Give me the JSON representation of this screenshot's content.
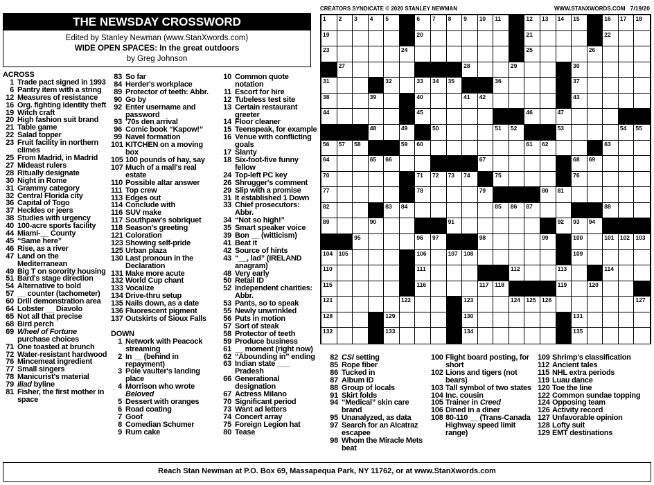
{
  "header": {
    "title": "THE NEWSDAY CROSSWORD",
    "editor": "Edited by Stanley Newman (www.StanXwords.com)",
    "theme": "WIDE OPEN SPACES: In the great outdoors",
    "author": "by Greg Johnson"
  },
  "grid_header": {
    "credit": "CREATORS SYNDICATE © 2020 STANLEY NEWMAN",
    "site": "WWW.STANXWORDS.COM",
    "date": "7/19/20"
  },
  "labels": {
    "across": "ACROSS",
    "down": "DOWN"
  },
  "grid": [
    ".....#......#....#...",
    ".....#......#....#...",
    "............#........",
    "#.....###......#.....",
    "...#.....##....#.....",
    ".....#.........#.....",
    ".....#.....##......##",
    "###...#......##......",
    "...##............#...",
    ".......###.....#.....",
    ".....#....#....#.....",
    ".....#.....###.......",
    "...#............##...",
    "......##......#...###",
    "##......##.....#.....",
    ".....#.........#.....",
    ".....#....##.....#...",
    ".....#......###.....#",
    "........#............",
    "...#....#......#.....",
    "...#....#......#....."
  ],
  "across": [
    {
      "n": "1",
      "t": "Trade pact signed in 1993"
    },
    {
      "n": "6",
      "t": "Pantry item with a string"
    },
    {
      "n": "12",
      "t": "Measures of resistance"
    },
    {
      "n": "16",
      "t": "Org. fighting identity theft"
    },
    {
      "n": "19",
      "t": "Witch craft"
    },
    {
      "n": "20",
      "t": "High fashion suit brand"
    },
    {
      "n": "21",
      "t": "Table game"
    },
    {
      "n": "22",
      "t": "Salad topper"
    },
    {
      "n": "23",
      "t": "Fruit facility in northern climes"
    },
    {
      "n": "25",
      "t": "From Madrid, in Madrid"
    },
    {
      "n": "27",
      "t": "Mideast rulers"
    },
    {
      "n": "28",
      "t": "Ritually designate"
    },
    {
      "n": "30",
      "t": "Night in Rome"
    },
    {
      "n": "31",
      "t": "Grammy category"
    },
    {
      "n": "32",
      "t": "Central Florida city"
    },
    {
      "n": "36",
      "t": "Capital of Togo"
    },
    {
      "n": "37",
      "t": "Heckles or jeers"
    },
    {
      "n": "38",
      "t": "Studies with urgency"
    },
    {
      "n": "40",
      "t": "100-acre sports facility"
    },
    {
      "n": "44",
      "t": "Miami-__ County"
    },
    {
      "n": "45",
      "t": "“Same here”"
    },
    {
      "n": "46",
      "t": "Rise, as a river"
    },
    {
      "n": "47",
      "t": "Land on the Mediterranean"
    },
    {
      "n": "49",
      "t": "Big T on sorority housing"
    },
    {
      "n": "51",
      "t": "Bard's stage direction"
    },
    {
      "n": "54",
      "t": "Alternative to bold"
    },
    {
      "n": "57",
      "t": "__ counter (tachometer)"
    },
    {
      "n": "60",
      "t": "Drill demonstration area"
    },
    {
      "n": "64",
      "t": "Lobster __ Diavolo"
    },
    {
      "n": "65",
      "t": "Not all that precise"
    },
    {
      "n": "68",
      "t": "Bird perch"
    },
    {
      "n": "69",
      "t": "Wheel of Fortune purchase choices",
      "i": "Wheel of Fortune"
    },
    {
      "n": "71",
      "t": "One toasted at brunch"
    },
    {
      "n": "72",
      "t": "Water-resistant hardwood"
    },
    {
      "n": "76",
      "t": "Mincemeat ingredient"
    },
    {
      "n": "77",
      "t": "Small singers"
    },
    {
      "n": "78",
      "t": "Manicurist's material"
    },
    {
      "n": "79",
      "t": "Iliad byline",
      "i": "Iliad"
    },
    {
      "n": "81",
      "t": "Fisher, the first mother in space"
    },
    {
      "n": "83",
      "t": "So far"
    },
    {
      "n": "84",
      "t": "Herder's workplace"
    },
    {
      "n": "89",
      "t": "Protector of teeth: Abbr."
    },
    {
      "n": "90",
      "t": "Go by"
    },
    {
      "n": "92",
      "t": "Enter username and password"
    },
    {
      "n": "93",
      "t": "'70s den arrival"
    },
    {
      "n": "96",
      "t": "Comic book “Kapow!”"
    },
    {
      "n": "99",
      "t": "Navel formation"
    },
    {
      "n": "101",
      "t": "KITCHEN on a moving box"
    },
    {
      "n": "105",
      "t": "100 pounds of hay, say"
    },
    {
      "n": "107",
      "t": "Much of a mall's real estate"
    },
    {
      "n": "110",
      "t": "Possible altar answer"
    },
    {
      "n": "111",
      "t": "Top crew"
    },
    {
      "n": "113",
      "t": "Edges out"
    },
    {
      "n": "114",
      "t": "Conclude with"
    },
    {
      "n": "116",
      "t": "SUV make"
    },
    {
      "n": "117",
      "t": "Southpaw's sobriquet"
    },
    {
      "n": "118",
      "t": "Season's greeting"
    },
    {
      "n": "121",
      "t": "Coloration"
    },
    {
      "n": "123",
      "t": "Showing self-pride"
    },
    {
      "n": "125",
      "t": "Urban plaza"
    },
    {
      "n": "130",
      "t": "Last pronoun in the Declaration"
    },
    {
      "n": "131",
      "t": "Make more acute"
    },
    {
      "n": "132",
      "t": "World Cup chant"
    },
    {
      "n": "133",
      "t": "Vocalize"
    },
    {
      "n": "134",
      "t": "Drive-thru setup"
    },
    {
      "n": "135",
      "t": "Nails down, as a date"
    },
    {
      "n": "136",
      "t": "Fluorescent pigment"
    },
    {
      "n": "137",
      "t": "Outskirts of Sioux Falls"
    }
  ],
  "down": [
    {
      "n": "1",
      "t": "Network with Peacock streaming"
    },
    {
      "n": "2",
      "t": "In __ (behind in repayment)"
    },
    {
      "n": "3",
      "t": "Pole vaulter's landing place"
    },
    {
      "n": "4",
      "t": "Morrison who wrote Beloved",
      "i": "Beloved"
    },
    {
      "n": "5",
      "t": "Dessert with oranges"
    },
    {
      "n": "6",
      "t": "Road coating"
    },
    {
      "n": "7",
      "t": "Goof"
    },
    {
      "n": "8",
      "t": "Comedian Schumer"
    },
    {
      "n": "9",
      "t": "Rum cake"
    },
    {
      "n": "10",
      "t": "Common quote notation"
    },
    {
      "n": "11",
      "t": "Escort for hire"
    },
    {
      "n": "12",
      "t": "Tubeless test site"
    },
    {
      "n": "13",
      "t": "Certain restaurant greeter"
    },
    {
      "n": "14",
      "t": "Floor cleaner"
    },
    {
      "n": "15",
      "t": "Teenspeak, for example"
    },
    {
      "n": "16",
      "t": "Venue with conflicting goals"
    },
    {
      "n": "17",
      "t": "Slanty"
    },
    {
      "n": "18",
      "t": "Six-foot-five funny fellow"
    },
    {
      "n": "24",
      "t": "Top-left PC key"
    },
    {
      "n": "26",
      "t": "Shrugger's comment"
    },
    {
      "n": "29",
      "t": "Slip with a promise"
    },
    {
      "n": "31",
      "t": "It established 1 Down"
    },
    {
      "n": "33",
      "t": "Chief prosecutors: Abbr."
    },
    {
      "n": "34",
      "t": "“Not so high!”"
    },
    {
      "n": "35",
      "t": "Smart speaker voice"
    },
    {
      "n": "39",
      "t": "Bon __ (witticism)"
    },
    {
      "n": "41",
      "t": "Beat it"
    },
    {
      "n": "42",
      "t": "Source of hints"
    },
    {
      "n": "43",
      "t": "“__, lad” (IRELAND anagram)"
    },
    {
      "n": "48",
      "t": "Very early"
    },
    {
      "n": "50",
      "t": "Retail ID"
    },
    {
      "n": "52",
      "t": "Independent charities: Abbr."
    },
    {
      "n": "53",
      "t": "Pants, so to speak"
    },
    {
      "n": "55",
      "t": "Newly unwrinkled"
    },
    {
      "n": "56",
      "t": "Puts in motion"
    },
    {
      "n": "57",
      "t": "Sort of steak"
    },
    {
      "n": "58",
      "t": "Protector of teeth"
    },
    {
      "n": "59",
      "t": "Produce business"
    },
    {
      "n": "61",
      "t": "__ moment (right now)"
    },
    {
      "n": "62",
      "t": "“Abounding in” ending"
    },
    {
      "n": "63",
      "t": "Indian state ___ Pradesh"
    },
    {
      "n": "66",
      "t": "Generational designation"
    },
    {
      "n": "67",
      "t": "Actress Milano"
    },
    {
      "n": "70",
      "t": "Significant period"
    },
    {
      "n": "73",
      "t": "Want ad letters"
    },
    {
      "n": "74",
      "t": "Concert array"
    },
    {
      "n": "75",
      "t": "Foreign Legion hat"
    },
    {
      "n": "80",
      "t": "Tease"
    },
    {
      "n": "82",
      "t": "CSI setting",
      "i": "CSI"
    },
    {
      "n": "85",
      "t": "Rope fiber"
    },
    {
      "n": "86",
      "t": "Tucked in"
    },
    {
      "n": "87",
      "t": "Album ID"
    },
    {
      "n": "88",
      "t": "Group of locals"
    },
    {
      "n": "91",
      "t": "Skirt folds"
    },
    {
      "n": "94",
      "t": "“Medical” skin care brand"
    },
    {
      "n": "95",
      "t": "Unanalyzed, as data"
    },
    {
      "n": "97",
      "t": "Search for an Alcatraz escapee"
    },
    {
      "n": "98",
      "t": "Whom the Miracle Mets beat"
    },
    {
      "n": "100",
      "t": "Flight board posting, for short"
    },
    {
      "n": "102",
      "t": "Lions and tigers (not bears)"
    },
    {
      "n": "103",
      "t": "Tall symbol of two states"
    },
    {
      "n": "104",
      "t": "Inc. cousin"
    },
    {
      "n": "105",
      "t": "Trainer in Creed",
      "i": "Creed"
    },
    {
      "n": "106",
      "t": "Dined in a diner"
    },
    {
      "n": "108",
      "t": "80-110 __ (Trans-Canada Highway speed limit range)"
    },
    {
      "n": "109",
      "t": "Shrimp's classification"
    },
    {
      "n": "112",
      "t": "Ancient tales"
    },
    {
      "n": "115",
      "t": "NHL extra periods"
    },
    {
      "n": "119",
      "t": "Luau dance"
    },
    {
      "n": "120",
      "t": "Toe the line"
    },
    {
      "n": "122",
      "t": "Common sundae topping"
    },
    {
      "n": "124",
      "t": "Opposing team"
    },
    {
      "n": "126",
      "t": "Activity record"
    },
    {
      "n": "127",
      "t": "Unfavorable opinion"
    },
    {
      "n": "128",
      "t": "Lofty suit"
    },
    {
      "n": "129",
      "t": "EMT destinations"
    }
  ],
  "footer": "Reach Stan Newman at P.O. Box 69, Massapequa Park, NY 11762, or at www.StanXwords.com"
}
